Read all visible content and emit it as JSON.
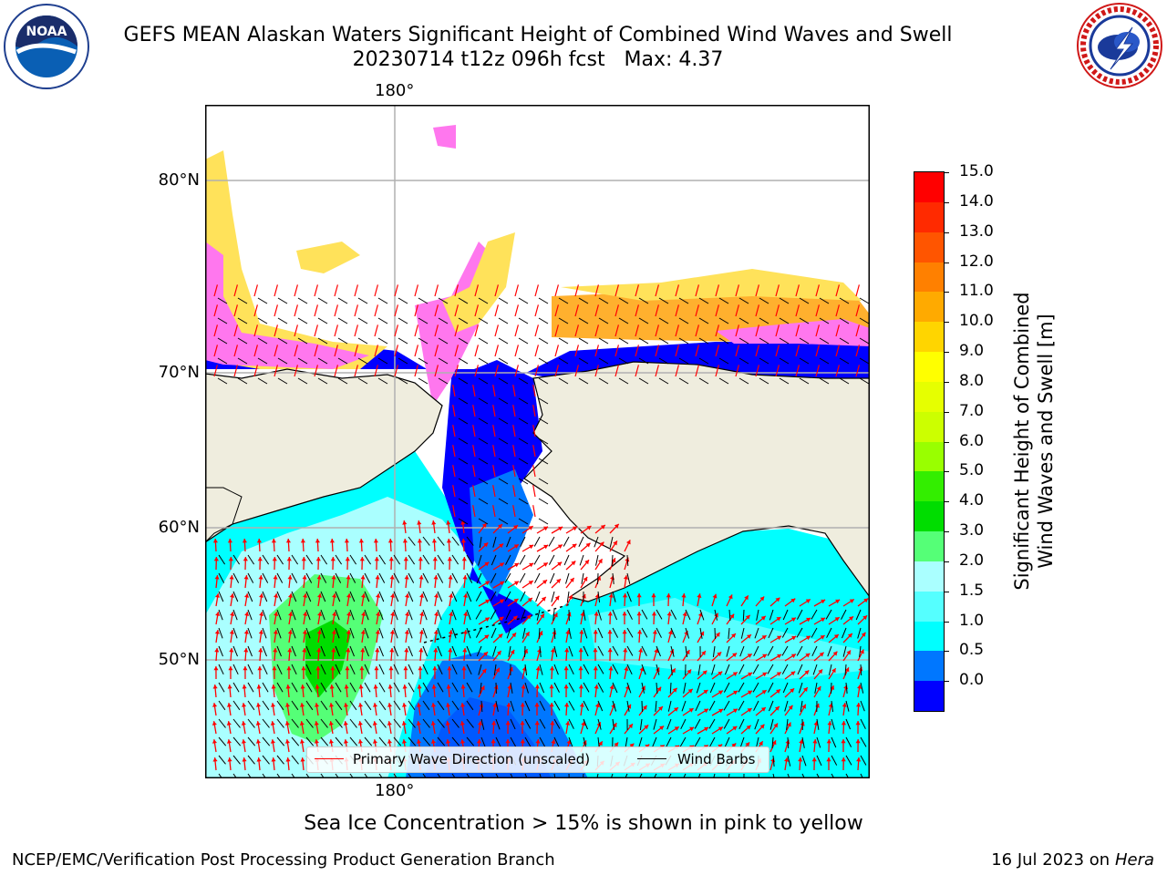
{
  "header": {
    "title_line1": "GEFS MEAN Alaskan Waters Significant Height of Combined Wind Waves and Swell",
    "title_line2": "20230714 t12z 096h fcst   Max: 4.37"
  },
  "logos": {
    "left": {
      "text": "NOAA",
      "icon": "noaa-logo"
    },
    "right": {
      "text": "NATIONAL WEATHER SERVICE",
      "icon": "nws-logo"
    }
  },
  "map": {
    "lon_labels": {
      "top": "180°",
      "bottom": "180°"
    },
    "lat_labels": [
      "80°N",
      "70°N",
      "60°N",
      "50°N"
    ],
    "colors": {
      "land": "#efedde",
      "ice_pink": "#ff77ee",
      "ice_yellow": "#ffe25a",
      "ice_orange": "#ffb02e",
      "wave_arrow": "#ff0000",
      "barb": "#000000"
    }
  },
  "legend": {
    "primary_wave": "Primary Wave Direction (unscaled)",
    "wind_barbs": "Wind Barbs"
  },
  "colorbar": {
    "title_line1": "Significant Height of Combined",
    "title_line2": "Wind Waves and Swell [m]",
    "labels": [
      "15.0",
      "14.0",
      "13.0",
      "12.0",
      "11.0",
      "10.0",
      "9.0",
      "8.0",
      "7.0",
      "6.0",
      "5.0",
      "4.0",
      "3.0",
      "2.0",
      "1.5",
      "1.0",
      "0.5",
      "0.0"
    ],
    "colors": [
      "#ff0000",
      "#ff2a00",
      "#ff5500",
      "#ff8000",
      "#ffaa00",
      "#ffd500",
      "#ffff00",
      "#e6ff00",
      "#ccff00",
      "#99ff00",
      "#33ee00",
      "#00dd00",
      "#55ff77",
      "#aaffff",
      "#55ffff",
      "#00ffff",
      "#0077ff",
      "#0000ff"
    ]
  },
  "note": "Sea Ice Concentration > 15% is shown in pink to yellow",
  "footer": {
    "left": "NCEP/EMC/Verification Post Processing Product Generation Branch",
    "right_prefix": "16 Jul 2023 on",
    "right_machine": "Hera"
  }
}
